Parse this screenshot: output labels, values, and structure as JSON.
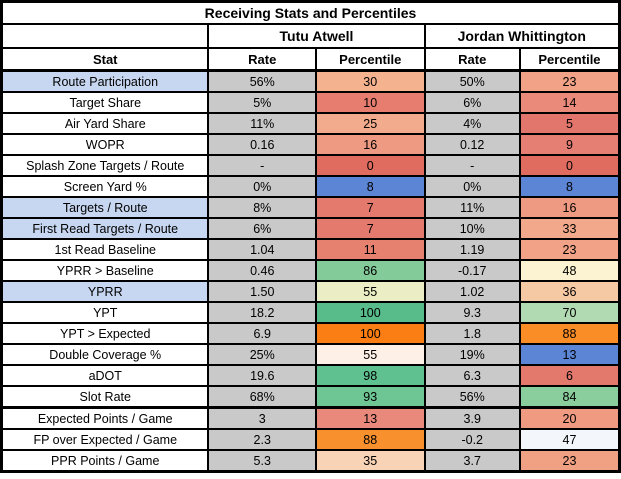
{
  "title": "Receiving Stats and Percentiles",
  "players": [
    "Tutu Atwell",
    "Jordan Whittington"
  ],
  "columns": {
    "stat": "Stat",
    "rate": "Rate",
    "percentile": "Percentile"
  },
  "colors": {
    "border": "#000000",
    "rate_cell_bg": "#c9c9c9",
    "highlight_label_bg": "#c8d7f1",
    "plain_label_bg": "#ffffff",
    "header_bg": "#ffffff"
  },
  "rows": [
    {
      "stat": "Route Participation",
      "label_bg": "#c8d7f1",
      "t_rate": "56%",
      "t_pct": "30",
      "t_pct_bg": "#f5b28f",
      "j_rate": "50%",
      "j_pct": "23",
      "j_pct_bg": "#f1a287",
      "thick_top": false
    },
    {
      "stat": "Target Share",
      "label_bg": "#ffffff",
      "t_rate": "5%",
      "t_pct": "10",
      "t_pct_bg": "#e67d6e",
      "j_rate": "6%",
      "j_pct": "14",
      "j_pct_bg": "#ea8a7a",
      "thick_top": false
    },
    {
      "stat": "Air Yard Share",
      "label_bg": "#ffffff",
      "t_rate": "11%",
      "t_pct": "25",
      "t_pct_bg": "#f3ab8d",
      "j_rate": "4%",
      "j_pct": "5",
      "j_pct_bg": "#e2756c",
      "thick_top": false
    },
    {
      "stat": "WOPR",
      "label_bg": "#ffffff",
      "t_rate": "0.16",
      "t_pct": "16",
      "t_pct_bg": "#ee9a82",
      "j_rate": "0.12",
      "j_pct": "9",
      "j_pct_bg": "#e67f73",
      "thick_top": false
    },
    {
      "stat": "Splash Zone Targets / Route",
      "label_bg": "#ffffff",
      "t_rate": "-",
      "t_pct": "0",
      "t_pct_bg": "#df6c5f",
      "j_rate": "-",
      "j_pct": "0",
      "j_pct_bg": "#df6c5f",
      "thick_top": false
    },
    {
      "stat": "Screen Yard %",
      "label_bg": "#ffffff",
      "t_rate": "0%",
      "t_pct": "8",
      "t_pct_bg": "#5c85d6",
      "j_rate": "0%",
      "j_pct": "8",
      "j_pct_bg": "#5c85d6",
      "thick_top": false
    },
    {
      "stat": "Targets / Route",
      "label_bg": "#c8d7f1",
      "t_rate": "8%",
      "t_pct": "7",
      "t_pct_bg": "#e37a6d",
      "j_rate": "11%",
      "j_pct": "16",
      "j_pct_bg": "#ee9a82",
      "thick_top": false
    },
    {
      "stat": "First Read Targets / Route",
      "label_bg": "#c8d7f1",
      "t_rate": "6%",
      "t_pct": "7",
      "t_pct_bg": "#e37a6d",
      "j_rate": "10%",
      "j_pct": "33",
      "j_pct_bg": "#f2a98b",
      "thick_top": false
    },
    {
      "stat": "1st Read Baseline",
      "label_bg": "#ffffff",
      "t_rate": "1.04",
      "t_pct": "11",
      "t_pct_bg": "#e6806f",
      "j_rate": "1.19",
      "j_pct": "23",
      "j_pct_bg": "#f1a287",
      "thick_top": false
    },
    {
      "stat": "YPRR > Baseline",
      "label_bg": "#ffffff",
      "t_rate": "0.46",
      "t_pct": "86",
      "t_pct_bg": "#84cb9a",
      "j_rate": "-0.17",
      "j_pct": "48",
      "j_pct_bg": "#fbf3d1",
      "thick_top": false
    },
    {
      "stat": "YPRR",
      "label_bg": "#c8d7f1",
      "t_rate": "1.50",
      "t_pct": "55",
      "t_pct_bg": "#ebedc4",
      "j_rate": "1.02",
      "j_pct": "36",
      "j_pct_bg": "#f6c9a5",
      "thick_top": false
    },
    {
      "stat": "YPT",
      "label_bg": "#ffffff",
      "t_rate": "18.2",
      "t_pct": "100",
      "t_pct_bg": "#57bb8a",
      "j_rate": "9.3",
      "j_pct": "70",
      "j_pct_bg": "#b1dab3",
      "thick_top": false
    },
    {
      "stat": "YPT > Expected",
      "label_bg": "#ffffff",
      "t_rate": "6.9",
      "t_pct": "100",
      "t_pct_bg": "#fb7e14",
      "j_rate": "1.8",
      "j_pct": "88",
      "j_pct_bg": "#fb8d27",
      "thick_top": false
    },
    {
      "stat": "Double Coverage %",
      "label_bg": "#ffffff",
      "t_rate": "25%",
      "t_pct": "55",
      "t_pct_bg": "#fdf0e7",
      "j_rate": "19%",
      "j_pct": "13",
      "j_pct_bg": "#5c85d6",
      "thick_top": false
    },
    {
      "stat": "aDOT",
      "label_bg": "#ffffff",
      "t_rate": "19.6",
      "t_pct": "98",
      "t_pct_bg": "#5fc090",
      "j_rate": "6.3",
      "j_pct": "6",
      "j_pct_bg": "#e3786d",
      "thick_top": false
    },
    {
      "stat": "Slot Rate",
      "label_bg": "#ffffff",
      "t_rate": "68%",
      "t_pct": "93",
      "t_pct_bg": "#6ec695",
      "j_rate": "56%",
      "j_pct": "84",
      "j_pct_bg": "#8bce9e",
      "thick_top": false
    },
    {
      "stat": "Expected Points / Game",
      "label_bg": "#ffffff",
      "t_rate": "3",
      "t_pct": "13",
      "t_pct_bg": "#e8897b",
      "j_rate": "3.9",
      "j_pct": "20",
      "j_pct_bg": "#f09a81",
      "thick_top": true
    },
    {
      "stat": "FP over Expected / Game",
      "label_bg": "#ffffff",
      "t_rate": "2.3",
      "t_pct": "88",
      "t_pct_bg": "#f9902e",
      "j_rate": "-0.2",
      "j_pct": "47",
      "j_pct_bg": "#f3f6fb",
      "thick_top": false
    },
    {
      "stat": "PPR Points / Game",
      "label_bg": "#ffffff",
      "t_rate": "5.3",
      "t_pct": "35",
      "t_pct_bg": "#f8d3b5",
      "j_rate": "3.7",
      "j_pct": "23",
      "j_pct_bg": "#f0a183",
      "thick_top": false
    }
  ],
  "chart_data": {
    "type": "table",
    "title": "Receiving Stats and Percentiles",
    "columns": [
      "Stat",
      "Tutu Atwell Rate",
      "Tutu Atwell Percentile",
      "Jordan Whittington Rate",
      "Jordan Whittington Percentile"
    ],
    "rows": [
      [
        "Route Participation",
        "56%",
        30,
        "50%",
        23
      ],
      [
        "Target Share",
        "5%",
        10,
        "6%",
        14
      ],
      [
        "Air Yard Share",
        "11%",
        25,
        "4%",
        5
      ],
      [
        "WOPR",
        0.16,
        16,
        0.12,
        9
      ],
      [
        "Splash Zone Targets / Route",
        "-",
        0,
        "-",
        0
      ],
      [
        "Screen Yard %",
        "0%",
        8,
        "0%",
        8
      ],
      [
        "Targets / Route",
        "8%",
        7,
        "11%",
        16
      ],
      [
        "First Read Targets / Route",
        "6%",
        7,
        "10%",
        33
      ],
      [
        "1st Read Baseline",
        1.04,
        11,
        1.19,
        23
      ],
      [
        "YPRR > Baseline",
        0.46,
        86,
        -0.17,
        48
      ],
      [
        "YPRR",
        1.5,
        55,
        1.02,
        36
      ],
      [
        "YPT",
        18.2,
        100,
        9.3,
        70
      ],
      [
        "YPT > Expected",
        6.9,
        100,
        1.8,
        88
      ],
      [
        "Double Coverage %",
        "25%",
        55,
        "19%",
        13
      ],
      [
        "aDOT",
        19.6,
        98,
        6.3,
        6
      ],
      [
        "Slot Rate",
        "68%",
        93,
        "56%",
        84
      ],
      [
        "Expected Points / Game",
        3,
        13,
        3.9,
        20
      ],
      [
        "FP over Expected / Game",
        2.3,
        88,
        -0.2,
        47
      ],
      [
        "PPR Points / Game",
        5.3,
        35,
        3.7,
        23
      ]
    ],
    "notes": "Percentile cells use a red-to-green heatmap; blue cells mark Screen Yard % (8), Double Coverage % (13) and FP over Expected (47); orange cells mark YPT > Expected (100, 88) and FP over Expected (88)."
  }
}
